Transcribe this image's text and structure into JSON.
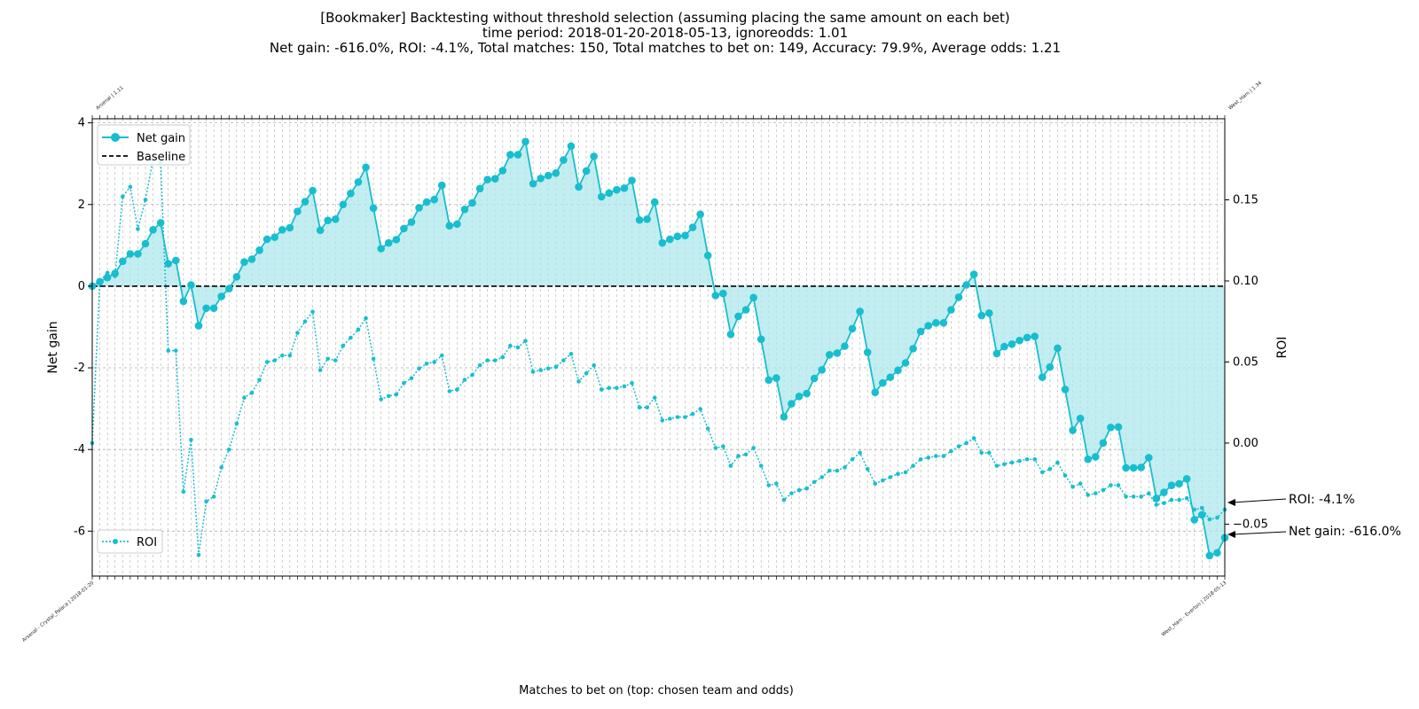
{
  "chart_data": {
    "type": "line",
    "title_lines": [
      "[Bookmaker] Backtesting without threshold selection (assuming placing the same amount on each bet)",
      "time period: 2018-01-20-2018-05-13, ignoreodds: 1.01",
      "Net gain: -616.0%, ROI: -4.1%, Total matches: 150, Total matches to bet on: 149, Accuracy: 79.9%, Average odds: 1.21"
    ],
    "xlabel": "Matches to bet on (top: chosen team and odds)",
    "ylabel_left": "Net gain",
    "ylabel_right": "ROI",
    "ylim_left": [
      -7.1,
      4.1
    ],
    "ylim_right": [
      -0.082,
      0.2
    ],
    "yticks_left": [
      4,
      2,
      0,
      -2,
      -4,
      -6
    ],
    "yticks_right": [
      0.15,
      0.1,
      0.05,
      0.0,
      -0.05
    ],
    "yticks_right_labels": [
      "0.15",
      "0.10",
      "0.05",
      "0.00",
      "−0.05"
    ],
    "grid": true,
    "legend_top": {
      "placement": "top-left",
      "items": [
        "Net gain",
        "Baseline"
      ]
    },
    "legend_bottom": {
      "placement": "bottom-left",
      "items": [
        "ROI"
      ]
    },
    "colors": {
      "series": "#17becf",
      "fill": "#aee7ec",
      "baseline": "#000000",
      "grid": "#b0b0b0"
    },
    "annotations": [
      "ROI: -4.1%",
      "Net gain: -616.0%"
    ],
    "first_bottom_label": "Arsenal - Crystal_Palace | 2018-01-20",
    "last_bottom_label": "West_Ham - Everton | 2018-05-13",
    "first_top_label": "Arsenal | 1.11",
    "last_top_label": "West_Ham | 1.34",
    "series": [
      {
        "name": "Net gain",
        "style": "solid-markers",
        "values": [
          0.0,
          0.11,
          0.21,
          0.31,
          0.61,
          0.79,
          0.79,
          1.04,
          1.38,
          1.55,
          0.55,
          0.63,
          -0.37,
          0.03,
          -0.97,
          -0.54,
          -0.54,
          -0.25,
          -0.06,
          0.23,
          0.59,
          0.66,
          0.88,
          1.15,
          1.2,
          1.38,
          1.43,
          1.83,
          2.07,
          2.34,
          1.37,
          1.61,
          1.64,
          2.0,
          2.27,
          2.55,
          2.91,
          1.91,
          0.92,
          1.06,
          1.14,
          1.41,
          1.57,
          1.92,
          2.06,
          2.12,
          2.47,
          1.48,
          1.52,
          1.88,
          2.04,
          2.39,
          2.61,
          2.63,
          2.83,
          3.22,
          3.22,
          3.54,
          2.51,
          2.64,
          2.71,
          2.77,
          3.09,
          3.43,
          2.43,
          2.82,
          3.18,
          2.19,
          2.28,
          2.36,
          2.4,
          2.59,
          1.62,
          1.64,
          2.06,
          1.06,
          1.15,
          1.22,
          1.24,
          1.44,
          1.76,
          0.75,
          -0.23,
          -0.18,
          -1.18,
          -0.74,
          -0.58,
          -0.28,
          -1.3,
          -2.3,
          -2.25,
          -3.2,
          -2.88,
          -2.7,
          -2.63,
          -2.26,
          -2.05,
          -1.68,
          -1.64,
          -1.47,
          -1.04,
          -0.62,
          -1.62,
          -2.6,
          -2.37,
          -2.23,
          -2.06,
          -1.88,
          -1.53,
          -1.11,
          -0.97,
          -0.9,
          -0.9,
          -0.58,
          -0.27,
          0.03,
          0.29,
          -0.72,
          -0.66,
          -1.65,
          -1.48,
          -1.42,
          -1.33,
          -1.26,
          -1.23,
          -2.23,
          -1.98,
          -1.52,
          -2.53,
          -3.53,
          -3.24,
          -4.24,
          -4.18,
          -3.84,
          -3.46,
          -3.45,
          -4.45,
          -4.45,
          -4.44,
          -4.2,
          -5.2,
          -5.05,
          -4.88,
          -4.84,
          -4.72,
          -5.72,
          -5.6,
          -6.6,
          -6.53,
          -6.16
        ]
      },
      {
        "name": "ROI",
        "style": "dotted-markers",
        "values": [
          0.0,
          0.1,
          0.105,
          0.103,
          0.152,
          0.158,
          0.132,
          0.15,
          0.175,
          0.173,
          0.057,
          0.057,
          -0.03,
          0.002,
          -0.069,
          -0.036,
          -0.033,
          -0.015,
          -0.004,
          0.012,
          0.028,
          0.031,
          0.039,
          0.05,
          0.051,
          0.054,
          0.054,
          0.068,
          0.075,
          0.081,
          0.045,
          0.052,
          0.051,
          0.06,
          0.065,
          0.07,
          0.077,
          0.052,
          0.027,
          0.029,
          0.03,
          0.037,
          0.04,
          0.046,
          0.049,
          0.05,
          0.054,
          0.032,
          0.033,
          0.039,
          0.042,
          0.048,
          0.051,
          0.051,
          0.053,
          0.06,
          0.059,
          0.063,
          0.044,
          0.045,
          0.046,
          0.047,
          0.051,
          0.055,
          0.038,
          0.043,
          0.048,
          0.033,
          0.034,
          0.034,
          0.035,
          0.037,
          0.022,
          0.022,
          0.028,
          0.014,
          0.015,
          0.016,
          0.016,
          0.018,
          0.021,
          0.009,
          -0.003,
          -0.002,
          -0.014,
          -0.008,
          -0.007,
          -0.003,
          -0.014,
          -0.026,
          -0.025,
          -0.035,
          -0.031,
          -0.029,
          -0.028,
          -0.024,
          -0.021,
          -0.017,
          -0.017,
          -0.015,
          -0.01,
          -0.006,
          -0.016,
          -0.025,
          -0.023,
          -0.021,
          -0.019,
          -0.018,
          -0.014,
          -0.01,
          -0.009,
          -0.008,
          -0.008,
          -0.005,
          -0.002,
          0.0,
          0.003,
          -0.006,
          -0.006,
          -0.014,
          -0.013,
          -0.012,
          -0.011,
          -0.01,
          -0.01,
          -0.018,
          -0.016,
          -0.012,
          -0.02,
          -0.027,
          -0.025,
          -0.032,
          -0.031,
          -0.029,
          -0.026,
          -0.026,
          -0.033,
          -0.033,
          -0.033,
          -0.031,
          -0.038,
          -0.037,
          -0.035,
          -0.035,
          -0.034,
          -0.041,
          -0.04,
          -0.047,
          -0.046,
          -0.041
        ]
      }
    ]
  }
}
